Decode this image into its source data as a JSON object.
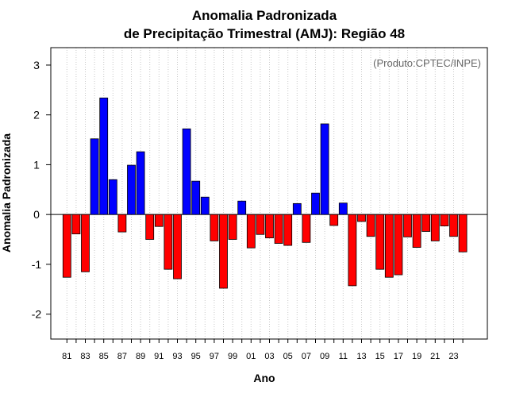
{
  "chart_data": {
    "type": "bar",
    "title_line1": "Anomalia Padronizada",
    "title_line2": "de Precipitação Trimestral (AMJ): Região 48",
    "source_note": "(Produto:CPTEC/INPE)",
    "xlabel": "Ano",
    "ylabel": "Anomalia Padronizada",
    "ylim": [
      -2.5,
      3.35
    ],
    "y_ticks": [
      "-2",
      "-1",
      "0",
      "1",
      "2",
      "3"
    ],
    "y_tick_values": [
      -2,
      -1,
      0,
      1,
      2,
      3
    ],
    "x_tick_labels": [
      "81",
      "83",
      "85",
      "87",
      "89",
      "91",
      "93",
      "95",
      "97",
      "99",
      "01",
      "03",
      "05",
      "07",
      "09",
      "11",
      "13",
      "15",
      "17",
      "19",
      "21",
      "23"
    ],
    "years": [
      1981,
      1982,
      1983,
      1984,
      1985,
      1986,
      1987,
      1988,
      1989,
      1990,
      1991,
      1992,
      1993,
      1994,
      1995,
      1996,
      1997,
      1998,
      1999,
      2000,
      2001,
      2002,
      2003,
      2004,
      2005,
      2006,
      2007,
      2008,
      2009,
      2010,
      2011,
      2012,
      2013,
      2014,
      2015,
      2016,
      2017,
      2018,
      2019,
      2020,
      2021,
      2022,
      2023,
      2024
    ],
    "values": [
      -1.26,
      -0.39,
      -1.15,
      1.52,
      2.34,
      0.7,
      -0.35,
      0.99,
      1.26,
      -0.5,
      -0.24,
      -1.1,
      -1.29,
      1.72,
      0.67,
      0.35,
      -0.53,
      -1.48,
      -0.5,
      0.27,
      -0.67,
      -0.4,
      -0.47,
      -0.58,
      -0.62,
      0.22,
      -0.56,
      0.43,
      1.82,
      -0.22,
      0.23,
      -1.43,
      -0.14,
      -0.44,
      -1.1,
      -1.26,
      -1.21,
      -0.45,
      -0.66,
      -0.34,
      -0.53,
      -0.23,
      -0.44,
      -0.75
    ],
    "colors": {
      "positive": "#0000ff",
      "negative": "#ff0000",
      "grid": "#c8c8c8",
      "frame": "#000000"
    },
    "grid": true,
    "zero_line": true
  }
}
